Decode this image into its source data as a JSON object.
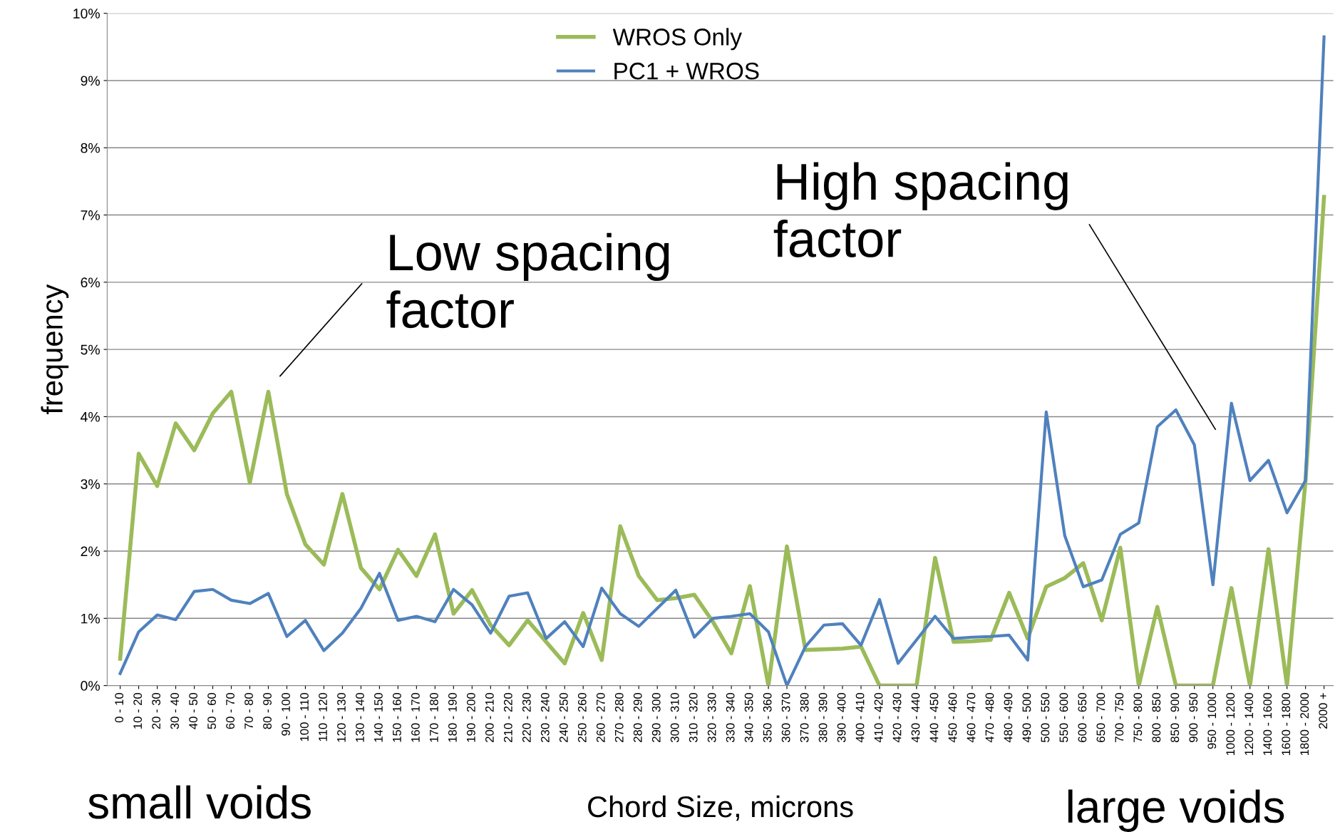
{
  "chart_data": {
    "type": "line",
    "xlabel": "Chord Size, microns",
    "ylabel": "frequency",
    "categories": [
      "0 - 10",
      "10 - 20",
      "20 - 30",
      "30 - 40",
      "40 - 50",
      "50 - 60",
      "60 - 70",
      "70 - 80",
      "80 - 90",
      "90 - 100",
      "100 - 110",
      "110 - 120",
      "120 - 130",
      "130 - 140",
      "140 - 150",
      "150 - 160",
      "160 - 170",
      "170 - 180",
      "180 - 190",
      "190 - 200",
      "200 - 210",
      "210 - 220",
      "220 - 230",
      "230 - 240",
      "240 - 250",
      "250 - 260",
      "260 - 270",
      "270 - 280",
      "280 - 290",
      "290 - 300",
      "300 - 310",
      "310 - 320",
      "320 - 330",
      "330 - 340",
      "340 - 350",
      "350 - 360",
      "360 - 370",
      "370 - 380",
      "380 - 390",
      "390 - 400",
      "400 - 410",
      "410 - 420",
      "420 - 430",
      "430 - 440",
      "440 - 450",
      "450 - 460",
      "460 - 470",
      "470 - 480",
      "480 - 490",
      "490 - 500",
      "500 - 550",
      "550 - 600",
      "600 - 650",
      "650 - 700",
      "700 - 750",
      "750 - 800",
      "800 - 850",
      "850 - 900",
      "900 - 950",
      "950 - 1000",
      "1000 - 1200",
      "1200 - 1400",
      "1400 - 1600",
      "1600 - 1800",
      "1800 - 2000",
      "2000 +"
    ],
    "series": [
      {
        "name": "WROS Only",
        "color": "#9bbb59",
        "values": [
          0.4,
          3.45,
          2.97,
          3.9,
          3.5,
          4.05,
          4.37,
          3.02,
          4.37,
          2.85,
          2.1,
          1.8,
          2.85,
          1.75,
          1.43,
          2.02,
          1.63,
          2.25,
          1.07,
          1.42,
          0.9,
          0.6,
          0.97,
          0.65,
          0.33,
          1.08,
          0.38,
          2.37,
          1.63,
          1.27,
          1.3,
          1.35,
          0.95,
          0.48,
          1.48,
          0,
          2.07,
          0.53,
          0.54,
          0.55,
          0.58,
          0,
          0,
          0,
          1.9,
          0.65,
          0.66,
          0.68,
          1.38,
          0.7,
          1.47,
          1.6,
          1.82,
          0.97,
          2.05,
          0,
          1.17,
          0,
          0,
          0,
          1.45,
          0,
          2.03,
          0,
          3.05,
          7.27
        ]
      },
      {
        "name": "PC1 + WROS",
        "color": "#4f81bd",
        "values": [
          0.18,
          0.8,
          1.05,
          0.98,
          1.4,
          1.43,
          1.27,
          1.22,
          1.37,
          0.73,
          0.97,
          0.52,
          0.78,
          1.15,
          1.67,
          0.97,
          1.03,
          0.95,
          1.43,
          1.2,
          0.78,
          1.33,
          1.38,
          0.7,
          0.95,
          0.58,
          1.45,
          1.07,
          0.88,
          1.15,
          1.42,
          0.72,
          1.0,
          1.03,
          1.07,
          0.8,
          0,
          0.58,
          0.9,
          0.92,
          0.6,
          1.28,
          0.33,
          0.68,
          1.03,
          0.7,
          0.72,
          0.73,
          0.75,
          0.38,
          4.07,
          2.23,
          1.47,
          1.57,
          2.25,
          2.42,
          3.85,
          4.1,
          3.58,
          1.5,
          4.2,
          3.05,
          3.35,
          2.57,
          3.05,
          9.65
        ]
      }
    ],
    "ylim": [
      0,
      10
    ],
    "yticks": [
      {
        "value": 0,
        "label": "0%"
      },
      {
        "value": 1,
        "label": "1%"
      },
      {
        "value": 2,
        "label": "2%"
      },
      {
        "value": 3,
        "label": "3%"
      },
      {
        "value": 4,
        "label": "4%"
      },
      {
        "value": 5,
        "label": "5%"
      },
      {
        "value": 6,
        "label": "6%"
      },
      {
        "value": 7,
        "label": "7%"
      },
      {
        "value": 8,
        "label": "8%"
      },
      {
        "value": 9,
        "label": "9%"
      },
      {
        "value": 10,
        "label": "10%"
      }
    ],
    "grid": "y",
    "legend": "top",
    "marker": "none",
    "line_style": "solid",
    "annotations": [
      "Low spacing\nfactor",
      "High spacing\nfactor",
      "small voids",
      "large voids"
    ]
  }
}
